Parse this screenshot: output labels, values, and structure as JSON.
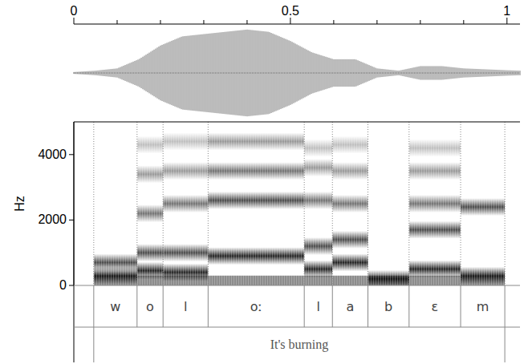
{
  "chart_data": {
    "type": "spectrogram",
    "x_unit_ticks": "s",
    "ylabel": "Hz",
    "xlim": [
      0,
      1.03
    ],
    "xticks": [
      0,
      0.5,
      1
    ],
    "xminor_ticks": [
      0.1,
      0.2,
      0.3,
      0.4,
      0.6,
      0.7,
      0.8,
      0.9
    ],
    "ylim": [
      0,
      5000
    ],
    "yticks": [
      0,
      2000,
      4000
    ],
    "waveform_envelope": {
      "t": [
        0,
        0.05,
        0.1,
        0.15,
        0.2,
        0.25,
        0.3,
        0.35,
        0.4,
        0.45,
        0.5,
        0.55,
        0.6,
        0.65,
        0.7,
        0.75,
        0.8,
        0.85,
        0.9,
        0.95,
        1.0,
        1.03
      ],
      "amplitude": [
        0.02,
        0.05,
        0.1,
        0.3,
        0.6,
        0.8,
        0.85,
        0.9,
        0.95,
        0.9,
        0.7,
        0.45,
        0.3,
        0.3,
        0.1,
        0.05,
        0.15,
        0.15,
        0.1,
        0.08,
        0.06,
        0.05
      ]
    },
    "segments": [
      {
        "label": "w",
        "start": 0.046,
        "end": 0.146,
        "formants": [
          300,
          700
        ]
      },
      {
        "label": "o",
        "start": 0.146,
        "end": 0.206,
        "formants": [
          450,
          1000,
          2200,
          3400,
          4300
        ]
      },
      {
        "label": "l",
        "start": 0.206,
        "end": 0.31,
        "formants": [
          400,
          1000,
          2500,
          3500,
          4400
        ]
      },
      {
        "label": "oː",
        "start": 0.31,
        "end": 0.532,
        "formants": [
          900,
          2600,
          3500,
          4400
        ]
      },
      {
        "label": "l",
        "start": 0.532,
        "end": 0.597,
        "formants": [
          500,
          1200,
          2600,
          3600,
          4200
        ]
      },
      {
        "label": "a",
        "start": 0.597,
        "end": 0.679,
        "formants": [
          700,
          1400,
          2500,
          3500,
          4300
        ]
      },
      {
        "label": "b",
        "start": 0.679,
        "end": 0.774,
        "formants": [
          200
        ]
      },
      {
        "label": "ɛ",
        "start": 0.774,
        "end": 0.893,
        "formants": [
          500,
          1700,
          2500,
          3500,
          4200
        ]
      },
      {
        "label": "m",
        "start": 0.893,
        "end": 0.995,
        "formants": [
          300,
          2400
        ]
      }
    ],
    "gloss": {
      "label": "It's burning",
      "start": 0.046,
      "end": 0.995
    }
  }
}
